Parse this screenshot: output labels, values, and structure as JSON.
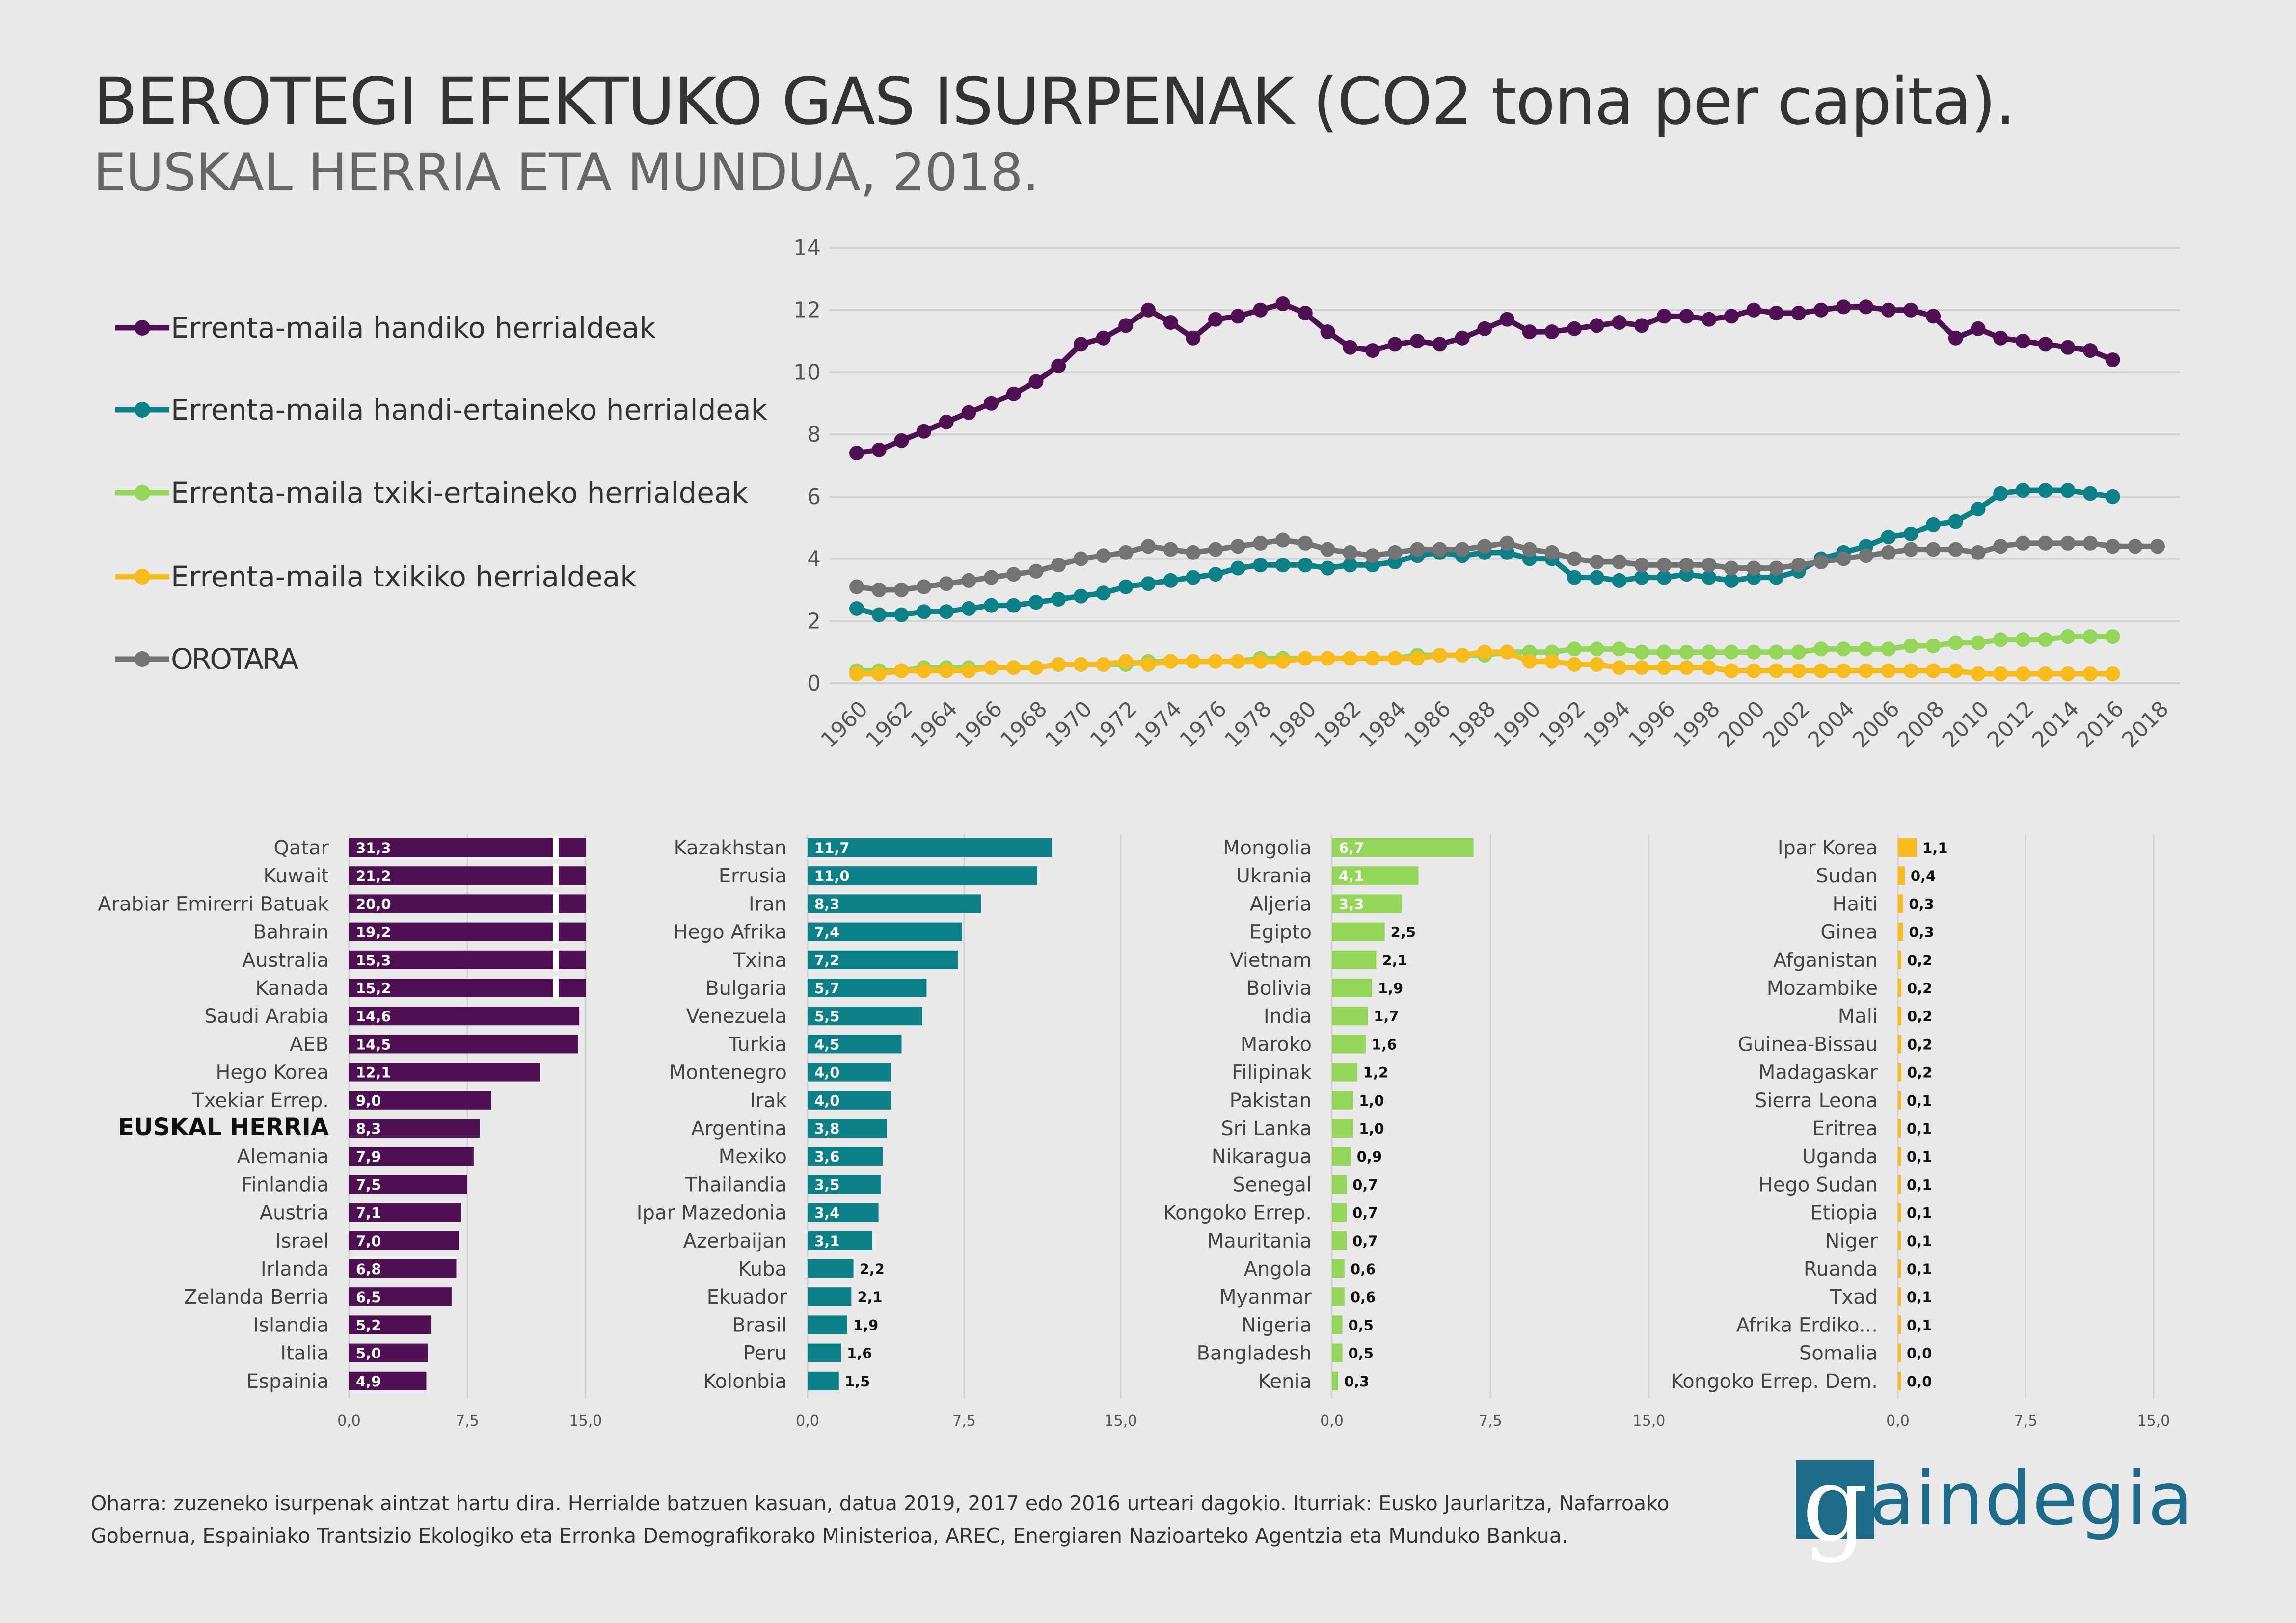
{
  "title": "BEROTEGI EFEKTUKO GAS ISURPENAK (CO2 tona per capita).",
  "subtitle": "EUSKAL HERRIA ETA MUNDUA, 2018.",
  "note": "Oharra: zuzeneko isurpenak aintzat hartu dira. Herrialde batzuen kasuan, datua 2019, 2017 edo 2016 urteari dagokio. Iturriak: Eusko Jaurlaritza, Nafarroako Gobernua, Espainiako Trantsizio Ekologiko eta Erronka Demografikorako Ministerioa, AREC, Energiaren Nazioarteko Agentzia eta Munduko Bankua.",
  "logo": {
    "mark": "g",
    "rest": "aindegia",
    "color": "#1c6b8a"
  },
  "chart_data": [
    {
      "type": "line",
      "ylim": [
        0,
        14
      ],
      "yticks": [
        "0",
        "2",
        "4",
        "6",
        "8",
        "10",
        "12",
        "14"
      ],
      "xticks": [
        "1960",
        "1962",
        "1964",
        "1966",
        "1968",
        "1970",
        "1972",
        "1974",
        "1976",
        "1978",
        "1980",
        "1982",
        "1984",
        "1986",
        "1988",
        "1990",
        "1992",
        "1994",
        "1996",
        "1998",
        "2000",
        "2002",
        "2004",
        "2006",
        "2008",
        "2010",
        "2012",
        "2014",
        "2016",
        "2018"
      ],
      "x_range": [
        1960,
        2018
      ],
      "grid": "horizontal",
      "legend_position": "left",
      "series": [
        {
          "name": "Errenta-maila handiko herrialdeak",
          "color": "#4e1053",
          "x_start": 1960,
          "values": [
            7.4,
            7.5,
            7.8,
            8.1,
            8.4,
            8.7,
            9.0,
            9.3,
            9.7,
            10.2,
            10.9,
            11.1,
            11.5,
            12.0,
            11.6,
            11.1,
            11.7,
            11.8,
            12.0,
            12.2,
            11.9,
            11.3,
            10.8,
            10.7,
            10.9,
            11.0,
            10.9,
            11.1,
            11.4,
            11.7,
            11.3,
            11.3,
            11.4,
            11.5,
            11.6,
            11.5,
            11.8,
            11.8,
            11.7,
            11.8,
            12.0,
            11.9,
            11.9,
            12.0,
            12.1,
            12.1,
            12.0,
            12.0,
            11.8,
            11.1,
            11.4,
            11.1,
            11.0,
            10.9,
            10.8,
            10.7,
            10.4
          ]
        },
        {
          "name": "Errenta-maila handi-ertaineko herrialdeak",
          "color": "#0b8087",
          "x_start": 1960,
          "values": [
            2.4,
            2.2,
            2.2,
            2.3,
            2.3,
            2.4,
            2.5,
            2.5,
            2.6,
            2.7,
            2.8,
            2.9,
            3.1,
            3.2,
            3.3,
            3.4,
            3.5,
            3.7,
            3.8,
            3.8,
            3.8,
            3.7,
            3.8,
            3.8,
            3.9,
            4.1,
            4.2,
            4.1,
            4.2,
            4.2,
            4.0,
            4.0,
            3.4,
            3.4,
            3.3,
            3.4,
            3.4,
            3.5,
            3.4,
            3.3,
            3.4,
            3.4,
            3.6,
            4.0,
            4.2,
            4.4,
            4.7,
            4.8,
            5.1,
            5.2,
            5.6,
            6.1,
            6.2,
            6.2,
            6.2,
            6.1,
            6.0
          ]
        },
        {
          "name": "Errenta-maila txiki-ertaineko herrialdeak",
          "color": "#93d65a",
          "x_start": 1960,
          "values": [
            0.4,
            0.4,
            0.4,
            0.5,
            0.5,
            0.5,
            0.5,
            0.5,
            0.5,
            0.6,
            0.6,
            0.6,
            0.6,
            0.7,
            0.7,
            0.7,
            0.7,
            0.7,
            0.8,
            0.8,
            0.8,
            0.8,
            0.8,
            0.8,
            0.8,
            0.9,
            0.9,
            0.9,
            0.9,
            1.0,
            1.0,
            1.0,
            1.1,
            1.1,
            1.1,
            1.0,
            1.0,
            1.0,
            1.0,
            1.0,
            1.0,
            1.0,
            1.0,
            1.1,
            1.1,
            1.1,
            1.1,
            1.2,
            1.2,
            1.3,
            1.3,
            1.4,
            1.4,
            1.4,
            1.5,
            1.5,
            1.5
          ]
        },
        {
          "name": "Errenta-maila txikiko herrialdeak",
          "color": "#f7bb1b",
          "x_start": 1960,
          "values": [
            0.3,
            0.3,
            0.4,
            0.4,
            0.4,
            0.4,
            0.5,
            0.5,
            0.5,
            0.6,
            0.6,
            0.6,
            0.7,
            0.6,
            0.7,
            0.7,
            0.7,
            0.7,
            0.7,
            0.7,
            0.8,
            0.8,
            0.8,
            0.8,
            0.8,
            0.8,
            0.9,
            0.9,
            1.0,
            1.0,
            0.7,
            0.7,
            0.6,
            0.6,
            0.5,
            0.5,
            0.5,
            0.5,
            0.5,
            0.4,
            0.4,
            0.4,
            0.4,
            0.4,
            0.4,
            0.4,
            0.4,
            0.4,
            0.4,
            0.4,
            0.3,
            0.3,
            0.3,
            0.3,
            0.3,
            0.3,
            0.3
          ]
        },
        {
          "name": "OROTARA",
          "color": "#737373",
          "x_start": 1960,
          "values": [
            3.1,
            3.0,
            3.0,
            3.1,
            3.2,
            3.3,
            3.4,
            3.5,
            3.6,
            3.8,
            4.0,
            4.1,
            4.2,
            4.4,
            4.3,
            4.2,
            4.3,
            4.4,
            4.5,
            4.6,
            4.5,
            4.3,
            4.2,
            4.1,
            4.2,
            4.3,
            4.3,
            4.3,
            4.4,
            4.5,
            4.3,
            4.2,
            4.0,
            3.9,
            3.9,
            3.8,
            3.8,
            3.8,
            3.8,
            3.7,
            3.7,
            3.7,
            3.8,
            3.9,
            4.0,
            4.1,
            4.2,
            4.3,
            4.3,
            4.3,
            4.2,
            4.4,
            4.5,
            4.5,
            4.5,
            4.5,
            4.4,
            4.4,
            4.4
          ]
        }
      ]
    },
    {
      "type": "bar",
      "orientation": "horizontal",
      "color": "#4e1053",
      "xlim": [
        0,
        15
      ],
      "xticks": [
        "0,0",
        "7,5",
        "15,0"
      ],
      "axis_break": true,
      "highlight": "EUSKAL HERRIA",
      "categories": [
        "Qatar",
        "Kuwait",
        "Arabiar Emirerri Batuak",
        "Bahrain",
        "Australia",
        "Kanada",
        "Saudi Arabia",
        "AEB",
        "Hego Korea",
        "Txekiar Errep.",
        "EUSKAL HERRIA",
        "Alemania",
        "Finlandia",
        "Austria",
        "Israel",
        "Irlanda",
        "Zelanda Berria",
        "Islandia",
        "Italia",
        "Espainia"
      ],
      "values": [
        31.3,
        21.2,
        20.0,
        19.2,
        15.3,
        15.2,
        14.6,
        14.5,
        12.1,
        9.0,
        8.3,
        7.9,
        7.5,
        7.1,
        7.0,
        6.8,
        6.5,
        5.2,
        5.0,
        4.9
      ],
      "labels": [
        "31,3",
        "21,2",
        "20,0",
        "19,2",
        "15,3",
        "15,2",
        "14,6",
        "14,5",
        "12,1",
        "9,0",
        "8,3",
        "7,9",
        "7,5",
        "7,1",
        "7,0",
        "6,8",
        "6,5",
        "5,2",
        "5,0",
        "4,9"
      ]
    },
    {
      "type": "bar",
      "orientation": "horizontal",
      "color": "#0b8087",
      "xlim": [
        0,
        15
      ],
      "xticks": [
        "0,0",
        "7,5",
        "15,0"
      ],
      "categories": [
        "Kazakhstan",
        "Errusia",
        "Iran",
        "Hego Afrika",
        "Txina",
        "Bulgaria",
        "Venezuela",
        "Turkia",
        "Montenegro",
        "Irak",
        "Argentina",
        "Mexiko",
        "Thailandia",
        "Ipar Mazedonia",
        "Azerbaijan",
        "Kuba",
        "Ekuador",
        "Brasil",
        "Peru",
        "Kolonbia"
      ],
      "values": [
        11.7,
        11.0,
        8.3,
        7.4,
        7.2,
        5.7,
        5.5,
        4.5,
        4.0,
        4.0,
        3.8,
        3.6,
        3.5,
        3.4,
        3.1,
        2.2,
        2.1,
        1.9,
        1.6,
        1.5
      ],
      "labels": [
        "11,7",
        "11,0",
        "8,3",
        "7,4",
        "7,2",
        "5,7",
        "5,5",
        "4,5",
        "4,0",
        "4,0",
        "3,8",
        "3,6",
        "3,5",
        "3,4",
        "3,1",
        "2,2",
        "2,1",
        "1,9",
        "1,6",
        "1,5"
      ]
    },
    {
      "type": "bar",
      "orientation": "horizontal",
      "color": "#93d65a",
      "xlim": [
        0,
        15
      ],
      "xticks": [
        "0,0",
        "7,5",
        "15,0"
      ],
      "categories": [
        "Mongolia",
        "Ukrania",
        "Aljeria",
        "Egipto",
        "Vietnam",
        "Bolivia",
        "India",
        "Maroko",
        "Filipinak",
        "Pakistan",
        "Sri Lanka",
        "Nikaragua",
        "Senegal",
        "Kongoko Errep.",
        "Mauritania",
        "Angola",
        "Myanmar",
        "Nigeria",
        "Bangladesh",
        "Kenia"
      ],
      "values": [
        6.7,
        4.1,
        3.3,
        2.5,
        2.1,
        1.9,
        1.7,
        1.6,
        1.2,
        1.0,
        1.0,
        0.9,
        0.7,
        0.7,
        0.7,
        0.6,
        0.6,
        0.5,
        0.5,
        0.3
      ],
      "labels": [
        "6,7",
        "4,1",
        "3,3",
        "2,5",
        "2,1",
        "1,9",
        "1,7",
        "1,6",
        "1,2",
        "1,0",
        "1,0",
        "0,9",
        "0,7",
        "0,7",
        "0,7",
        "0,6",
        "0,6",
        "0,5",
        "0,5",
        "0,3"
      ]
    },
    {
      "type": "bar",
      "orientation": "horizontal",
      "color": "#f7bb1b",
      "xlim": [
        0,
        15
      ],
      "xticks": [
        "0,0",
        "7,5",
        "15,0"
      ],
      "categories": [
        "Ipar Korea",
        "Sudan",
        "Haiti",
        "Ginea",
        "Afganistan",
        "Mozambike",
        "Mali",
        "Guinea-Bissau",
        "Madagaskar",
        "Sierra Leona",
        "Eritrea",
        "Uganda",
        "Hego Sudan",
        "Etiopia",
        "Niger",
        "Ruanda",
        "Txad",
        "Afrika Erdiko...",
        "Somalia",
        "Kongoko Errep. Dem."
      ],
      "values": [
        1.1,
        0.4,
        0.3,
        0.3,
        0.2,
        0.2,
        0.2,
        0.2,
        0.2,
        0.1,
        0.1,
        0.1,
        0.1,
        0.1,
        0.1,
        0.1,
        0.1,
        0.1,
        0.0,
        0.0
      ],
      "labels": [
        "1,1",
        "0,4",
        "0,3",
        "0,3",
        "0,2",
        "0,2",
        "0,2",
        "0,2",
        "0,2",
        "0,1",
        "0,1",
        "0,1",
        "0,1",
        "0,1",
        "0,1",
        "0,1",
        "0,1",
        "0,1",
        "0,0",
        "0,0"
      ]
    }
  ]
}
